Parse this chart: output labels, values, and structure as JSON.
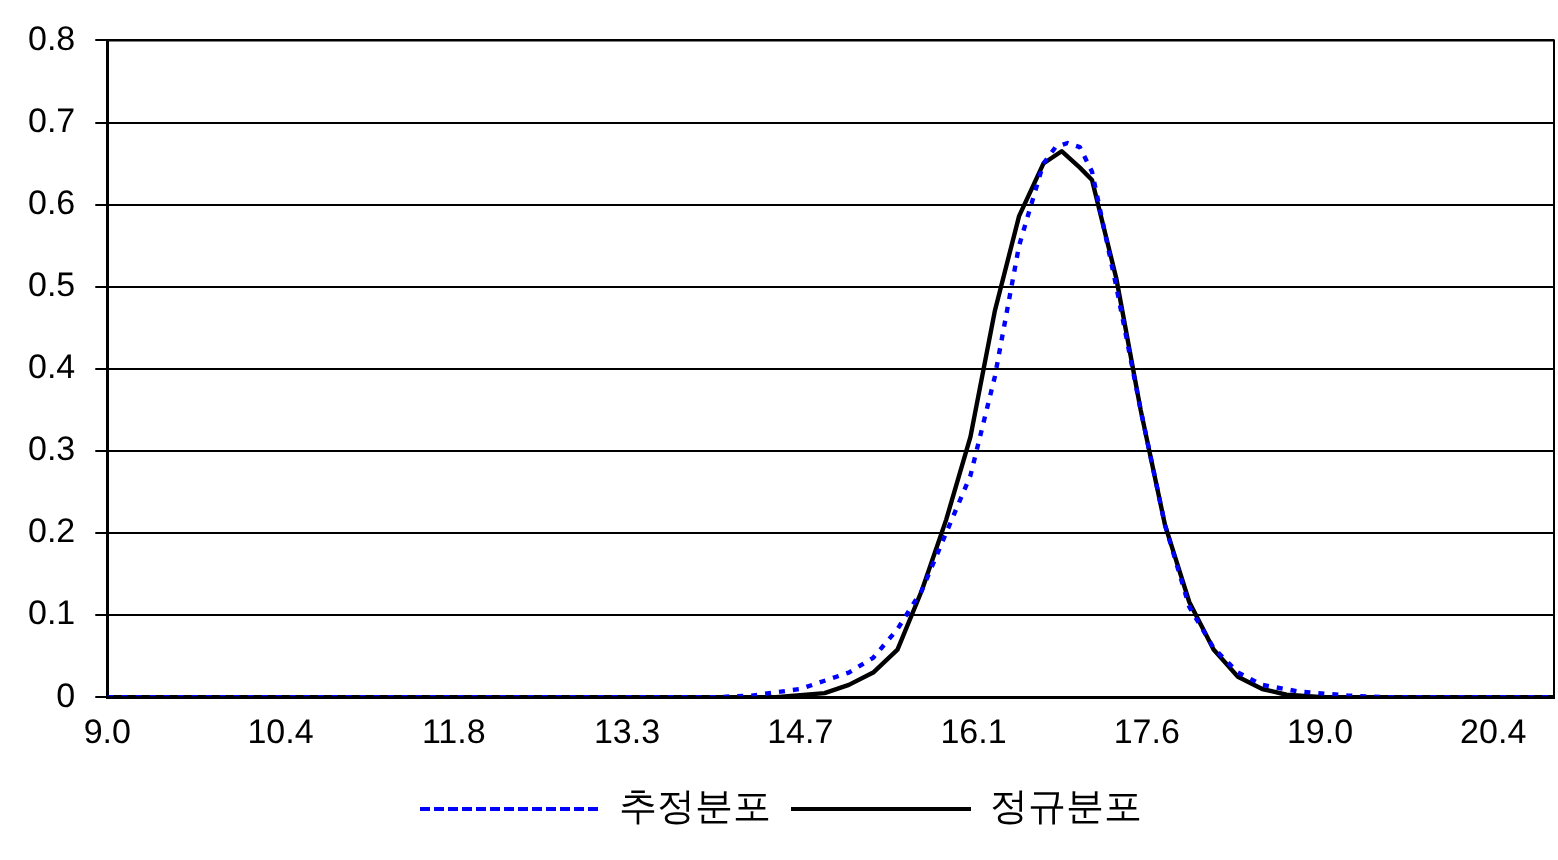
{
  "chart_data": {
    "type": "line",
    "xlim": [
      9.0,
      20.9
    ],
    "xticks": [
      {
        "value": 9.0,
        "label": "9.0"
      },
      {
        "value": 10.425,
        "label": "10.4"
      },
      {
        "value": 11.85,
        "label": "11.8"
      },
      {
        "value": 13.275,
        "label": "13.3"
      },
      {
        "value": 14.7,
        "label": "14.7"
      },
      {
        "value": 16.125,
        "label": "16.1"
      },
      {
        "value": 17.55,
        "label": "17.6"
      },
      {
        "value": 18.975,
        "label": "19.0"
      },
      {
        "value": 20.4,
        "label": "20.4"
      }
    ],
    "ylim": [
      0,
      0.8
    ],
    "yticks": [
      0,
      0.1,
      0.2,
      0.3,
      0.4,
      0.5,
      0.6,
      0.7,
      0.8
    ],
    "grid": "y",
    "legend": "bottom",
    "marker": "none",
    "series": [
      {
        "name": "추정분포",
        "color": "#0000ff",
        "line_style": "dotted",
        "x": [
          9.0,
          14.0,
          14.3,
          14.7,
          14.9,
          15.1,
          15.3,
          15.5,
          15.7,
          15.9,
          16.1,
          16.3,
          16.5,
          16.7,
          16.8,
          16.9,
          17.0,
          17.1,
          17.3,
          17.5,
          17.7,
          17.9,
          18.1,
          18.3,
          18.5,
          18.8,
          19.2,
          19.5,
          20.9
        ],
        "values": [
          0,
          0,
          0.002,
          0.01,
          0.02,
          0.03,
          0.048,
          0.083,
          0.13,
          0.2,
          0.27,
          0.39,
          0.55,
          0.65,
          0.67,
          0.675,
          0.67,
          0.64,
          0.5,
          0.35,
          0.21,
          0.11,
          0.06,
          0.03,
          0.015,
          0.007,
          0.002,
          0,
          0
        ]
      },
      {
        "name": "정규분포",
        "color": "#000000",
        "line_style": "solid",
        "x": [
          9.0,
          14.5,
          14.9,
          15.1,
          15.3,
          15.5,
          15.7,
          15.9,
          16.1,
          16.3,
          16.5,
          16.7,
          16.85,
          17.0,
          17.1,
          17.3,
          17.5,
          17.7,
          17.9,
          18.1,
          18.3,
          18.5,
          18.7,
          19.0,
          20.9
        ],
        "values": [
          0,
          0,
          0.005,
          0.015,
          0.03,
          0.058,
          0.13,
          0.216,
          0.317,
          0.47,
          0.586,
          0.65,
          0.665,
          0.645,
          0.63,
          0.51,
          0.35,
          0.21,
          0.116,
          0.058,
          0.025,
          0.01,
          0.003,
          0,
          0
        ]
      }
    ]
  }
}
